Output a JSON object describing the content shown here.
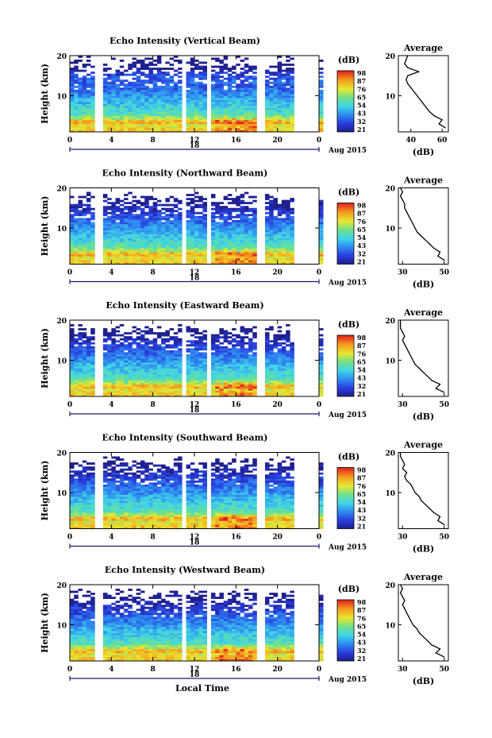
{
  "chart_data": [
    {
      "type": "heatmap",
      "title": "Echo Intensity (Vertical Beam)",
      "ylabel": "Height (km)",
      "xlabel": "",
      "x_ticks": [
        "0",
        "4",
        "8",
        "12",
        "16",
        "20",
        "0"
      ],
      "y_ticks": [
        "20",
        "10"
      ],
      "date_marker": "18",
      "date_label": "Aug 2015",
      "xlim": [
        0,
        24
      ],
      "ylim": [
        1,
        20
      ],
      "colorbar": {
        "unit": "(dB)",
        "ticks": [
          "98",
          "87",
          "76",
          "65",
          "54",
          "43",
          "32",
          "21"
        ]
      },
      "data_gaps_hours": [
        [
          2.4,
          3.1
        ],
        [
          5.9,
          6.0
        ],
        [
          11.0,
          11.3
        ],
        [
          13.3,
          13.8
        ],
        [
          18.0,
          18.8
        ],
        [
          21.4,
          24.0
        ]
      ],
      "profile": {
        "title": "Average",
        "xlabel": "(dB)",
        "x_ticks": [
          "40",
          "60"
        ],
        "xlim": [
          32,
          64
        ],
        "y_ticks": [
          "20",
          "10"
        ],
        "height_km": [
          2,
          3,
          4,
          5,
          6,
          7,
          8,
          9,
          10,
          11,
          12,
          13,
          14,
          15,
          16,
          17,
          18,
          19,
          20
        ],
        "values_db": [
          62,
          58,
          60,
          55,
          52,
          50,
          48,
          46,
          44,
          42,
          40,
          38,
          37,
          38,
          45,
          38,
          36,
          37,
          38
        ]
      }
    },
    {
      "type": "heatmap",
      "title": "Echo Intensity (Northward Beam)",
      "ylabel": "Height (km)",
      "xlabel": "",
      "x_ticks": [
        "0",
        "4",
        "8",
        "12",
        "16",
        "20",
        "0"
      ],
      "y_ticks": [
        "20",
        "10"
      ],
      "date_marker": "18",
      "date_label": "Aug 2015",
      "xlim": [
        0,
        24
      ],
      "ylim": [
        1,
        20
      ],
      "colorbar": {
        "unit": "(dB)",
        "ticks": [
          "98",
          "87",
          "76",
          "65",
          "54",
          "43",
          "32",
          "21"
        ]
      },
      "data_gaps_hours": [
        [
          2.4,
          3.1
        ],
        [
          5.9,
          6.0
        ],
        [
          11.0,
          11.3
        ],
        [
          13.3,
          13.8
        ],
        [
          18.0,
          18.8
        ],
        [
          21.4,
          24.0
        ]
      ],
      "profile": {
        "title": "Average",
        "xlabel": "(dB)",
        "x_ticks": [
          "30",
          "50"
        ],
        "xlim": [
          28,
          52
        ],
        "y_ticks": [
          "20",
          "10"
        ],
        "height_km": [
          2,
          3,
          4,
          5,
          6,
          7,
          8,
          9,
          10,
          11,
          12,
          13,
          14,
          15,
          16,
          17,
          18,
          19,
          20
        ],
        "values_db": [
          50,
          47,
          48,
          45,
          43,
          41,
          39,
          37,
          36,
          35,
          34,
          33,
          32,
          31,
          31,
          30,
          29,
          30,
          29
        ]
      }
    },
    {
      "type": "heatmap",
      "title": "Echo Intensity (Eastward Beam)",
      "ylabel": "Height (km)",
      "xlabel": "",
      "x_ticks": [
        "0",
        "4",
        "8",
        "12",
        "16",
        "20",
        "0"
      ],
      "y_ticks": [
        "20",
        "10"
      ],
      "date_marker": "18",
      "date_label": "Aug 2015",
      "xlim": [
        0,
        24
      ],
      "ylim": [
        1,
        20
      ],
      "colorbar": {
        "unit": "(dB)",
        "ticks": [
          "98",
          "87",
          "76",
          "65",
          "54",
          "43",
          "32",
          "21"
        ]
      },
      "data_gaps_hours": [
        [
          2.4,
          3.1
        ],
        [
          5.9,
          6.0
        ],
        [
          11.0,
          11.3
        ],
        [
          13.3,
          13.8
        ],
        [
          18.0,
          18.8
        ],
        [
          21.4,
          24.0
        ]
      ],
      "profile": {
        "title": "Average",
        "xlabel": "(dB)",
        "x_ticks": [
          "30",
          "50"
        ],
        "xlim": [
          28,
          52
        ],
        "y_ticks": [
          "20",
          "10"
        ],
        "height_km": [
          2,
          3,
          4,
          5,
          6,
          7,
          8,
          9,
          10,
          11,
          12,
          13,
          14,
          15,
          16,
          17,
          18,
          19,
          20
        ],
        "values_db": [
          50,
          46,
          48,
          44,
          42,
          40,
          38,
          36,
          35,
          34,
          33,
          32,
          31,
          30,
          31,
          30,
          29,
          29,
          29
        ]
      }
    },
    {
      "type": "heatmap",
      "title": "Echo Intensity (Southward Beam)",
      "ylabel": "Height (km)",
      "xlabel": "",
      "x_ticks": [
        "0",
        "4",
        "8",
        "12",
        "16",
        "20",
        "0"
      ],
      "y_ticks": [
        "20",
        "10"
      ],
      "date_marker": "18",
      "date_label": "Aug 2015",
      "xlim": [
        0,
        24
      ],
      "ylim": [
        1,
        20
      ],
      "colorbar": {
        "unit": "(dB)",
        "ticks": [
          "98",
          "87",
          "76",
          "65",
          "54",
          "43",
          "32",
          "21"
        ]
      },
      "data_gaps_hours": [
        [
          2.4,
          3.1
        ],
        [
          5.9,
          6.0
        ],
        [
          11.0,
          11.3
        ],
        [
          13.3,
          13.8
        ],
        [
          18.0,
          18.8
        ],
        [
          21.4,
          24.0
        ]
      ],
      "profile": {
        "title": "Average",
        "xlabel": "(dB)",
        "x_ticks": [
          "30",
          "50"
        ],
        "xlim": [
          28,
          52
        ],
        "y_ticks": [
          "20",
          "10"
        ],
        "height_km": [
          2,
          3,
          4,
          5,
          6,
          7,
          8,
          9,
          10,
          11,
          12,
          13,
          14,
          15,
          16,
          17,
          18,
          19,
          20
        ],
        "values_db": [
          50,
          47,
          48,
          45,
          43,
          41,
          39,
          38,
          36,
          35,
          34,
          32,
          31,
          32,
          30,
          31,
          30,
          29,
          29
        ]
      }
    },
    {
      "type": "heatmap",
      "title": "Echo Intensity (Westward Beam)",
      "ylabel": "Height (km)",
      "xlabel": "Local Time",
      "x_ticks": [
        "0",
        "4",
        "8",
        "12",
        "16",
        "20",
        "0"
      ],
      "y_ticks": [
        "20",
        "10"
      ],
      "date_marker": "18",
      "date_label": "Aug 2015",
      "xlim": [
        0,
        24
      ],
      "ylim": [
        1,
        20
      ],
      "colorbar": {
        "unit": "(dB)",
        "ticks": [
          "98",
          "87",
          "76",
          "65",
          "54",
          "43",
          "32",
          "21"
        ]
      },
      "data_gaps_hours": [
        [
          2.4,
          3.1
        ],
        [
          5.9,
          6.0
        ],
        [
          11.0,
          11.3
        ],
        [
          13.3,
          13.8
        ],
        [
          18.0,
          18.8
        ],
        [
          21.4,
          24.0
        ]
      ],
      "profile": {
        "title": "Average",
        "xlabel": "(dB)",
        "x_ticks": [
          "30",
          "50"
        ],
        "xlim": [
          28,
          52
        ],
        "y_ticks": [
          "20",
          "10"
        ],
        "height_km": [
          2,
          3,
          4,
          5,
          6,
          7,
          8,
          9,
          10,
          11,
          12,
          13,
          14,
          15,
          16,
          17,
          18,
          19,
          20
        ],
        "values_db": [
          50,
          46,
          48,
          44,
          42,
          40,
          38,
          37,
          35,
          34,
          33,
          32,
          31,
          30,
          31,
          30,
          29,
          30,
          29
        ]
      }
    }
  ]
}
